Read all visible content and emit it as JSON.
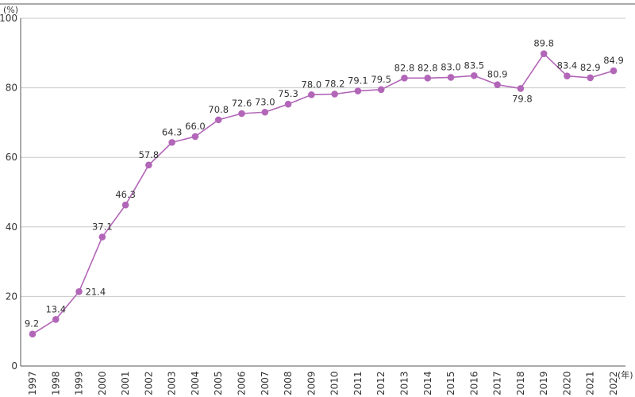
{
  "chart_data": {
    "type": "line",
    "title": "",
    "xlabel": "",
    "ylabel": "",
    "y_unit": "(%)",
    "x_unit": "(年)",
    "ylim": [
      0,
      100
    ],
    "yticks": [
      "0",
      "20",
      "40",
      "60",
      "80",
      "100"
    ],
    "grid": true,
    "colors": {
      "line": "#b266b8",
      "marker": "#b266b8",
      "grid": "#c8c8c8",
      "axis": "#555555"
    },
    "x": [
      "1997",
      "1998",
      "1999",
      "2000",
      "2001",
      "2002",
      "2003",
      "2004",
      "2005",
      "2006",
      "2007",
      "2008",
      "2009",
      "2010",
      "2011",
      "2012",
      "2013",
      "2014",
      "2015",
      "2016",
      "2017",
      "2018",
      "2019",
      "2020",
      "2021",
      "2022"
    ],
    "values": [
      9.2,
      13.4,
      21.4,
      37.1,
      46.3,
      57.8,
      64.3,
      66.0,
      70.8,
      72.6,
      73.0,
      75.3,
      78.0,
      78.2,
      79.1,
      79.5,
      82.8,
      82.8,
      83.0,
      83.5,
      80.9,
      79.8,
      89.8,
      83.4,
      82.9,
      84.9
    ],
    "data_labels": [
      "9.2",
      "13.4",
      "21.4",
      "37.1",
      "46.3",
      "57.8",
      "64.3",
      "66.0",
      "70.8",
      "72.6",
      "73.0",
      "75.3",
      "78.0",
      "78.2",
      "79.1",
      "79.5",
      "82.8",
      "82.8",
      "83.0",
      "83.5",
      "80.9",
      "79.8",
      "89.8",
      "83.4",
      "82.9",
      "84.9"
    ]
  }
}
